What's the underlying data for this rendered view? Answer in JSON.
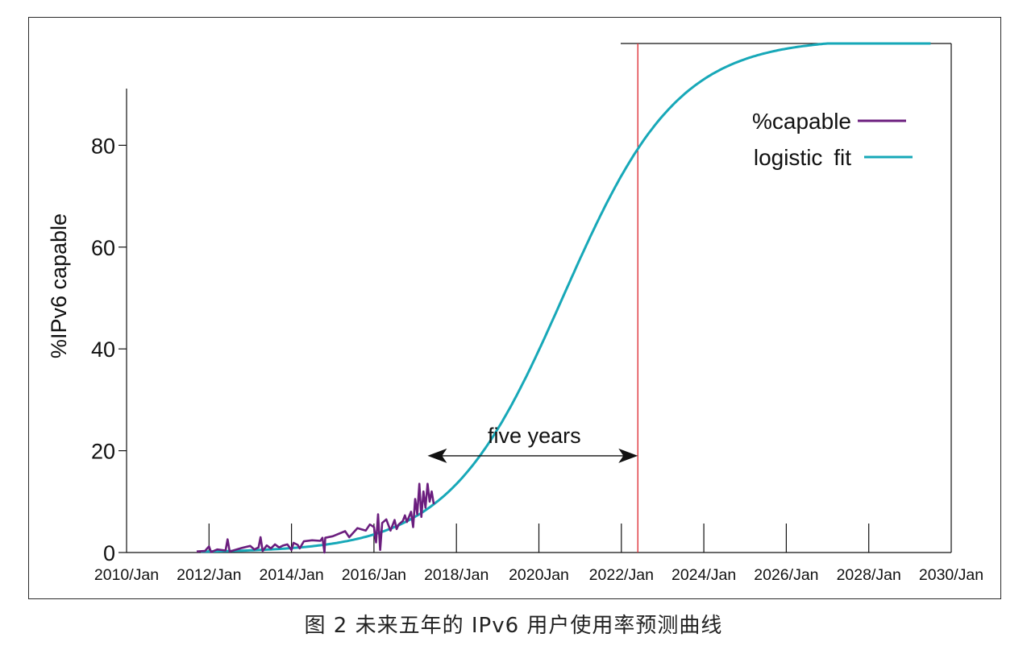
{
  "chart_data": {
    "type": "line",
    "ylabel": "%IPv6 capable",
    "xlabel": "",
    "ylim": [
      0,
      100
    ],
    "y_ticks": [
      0,
      20,
      40,
      60,
      80
    ],
    "x_tick_labels": [
      "2010/Jan",
      "2012/Jan",
      "2014/Jan",
      "2016/Jan",
      "2018/Jan",
      "2020Jan",
      "2022/Jan",
      "2024/Jan",
      "2026/Jan",
      "2028/Jan",
      "2030/Jan"
    ],
    "xlim": [
      2010.0,
      2030.0
    ],
    "series": [
      {
        "name": "%capable",
        "color": "#6b1e7e",
        "points": [
          [
            2011.7,
            0.2
          ],
          [
            2011.9,
            0.3
          ],
          [
            2012.0,
            1.2
          ],
          [
            2012.05,
            0.1
          ],
          [
            2012.2,
            0.6
          ],
          [
            2012.4,
            0.4
          ],
          [
            2012.45,
            2.6
          ],
          [
            2012.5,
            0.2
          ],
          [
            2012.8,
            0.9
          ],
          [
            2013.0,
            1.3
          ],
          [
            2013.1,
            0.6
          ],
          [
            2013.2,
            1.0
          ],
          [
            2013.25,
            3.0
          ],
          [
            2013.3,
            0.3
          ],
          [
            2013.4,
            1.4
          ],
          [
            2013.5,
            0.8
          ],
          [
            2013.6,
            1.6
          ],
          [
            2013.7,
            1.0
          ],
          [
            2013.8,
            1.4
          ],
          [
            2013.9,
            1.6
          ],
          [
            2014.0,
            0.5
          ],
          [
            2014.05,
            1.9
          ],
          [
            2014.15,
            1.5
          ],
          [
            2014.2,
            0.8
          ],
          [
            2014.3,
            2.2
          ],
          [
            2014.5,
            2.4
          ],
          [
            2014.7,
            2.3
          ],
          [
            2014.75,
            2.9
          ],
          [
            2014.8,
            0.0
          ],
          [
            2014.82,
            2.9
          ],
          [
            2015.0,
            3.2
          ],
          [
            2015.3,
            4.2
          ],
          [
            2015.4,
            3.0
          ],
          [
            2015.6,
            4.8
          ],
          [
            2015.8,
            4.3
          ],
          [
            2015.9,
            5.5
          ],
          [
            2016.0,
            5.0
          ],
          [
            2016.05,
            2.0
          ],
          [
            2016.1,
            7.5
          ],
          [
            2016.15,
            0.5
          ],
          [
            2016.2,
            5.8
          ],
          [
            2016.3,
            6.5
          ],
          [
            2016.4,
            4.3
          ],
          [
            2016.5,
            6.4
          ],
          [
            2016.55,
            4.6
          ],
          [
            2016.6,
            5.5
          ],
          [
            2016.7,
            6.2
          ],
          [
            2016.75,
            7.3
          ],
          [
            2016.8,
            6.0
          ],
          [
            2016.9,
            8.0
          ],
          [
            2016.95,
            5.0
          ],
          [
            2017.0,
            10.5
          ],
          [
            2017.05,
            7.5
          ],
          [
            2017.1,
            13.5
          ],
          [
            2017.15,
            7.0
          ],
          [
            2017.2,
            12.0
          ],
          [
            2017.25,
            8.8
          ],
          [
            2017.3,
            13.5
          ],
          [
            2017.35,
            10.0
          ],
          [
            2017.4,
            12.0
          ],
          [
            2017.45,
            9.5
          ]
        ]
      },
      {
        "name": "logistic fit",
        "color": "#17a8b8",
        "fn": {
          "L": 101.0,
          "k": 0.72,
          "x0": 2020.6
        },
        "x_range": [
          2011.8,
          2029.5
        ]
      }
    ],
    "annotations": [
      {
        "text": "five years",
        "from_x": 2017.3,
        "to_x": 2022.4,
        "y": 19
      }
    ],
    "reference_line_x": 2022.4,
    "legend_position": "top-right"
  },
  "caption": "图 2   未来五年的 IPv6 用户使用率预测曲线"
}
